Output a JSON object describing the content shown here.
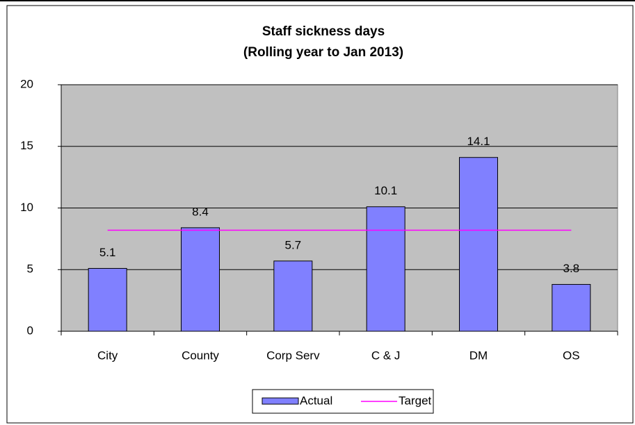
{
  "chart_data": {
    "type": "bar",
    "title": "Staff sickness days",
    "subtitle": "(Rolling year to Jan 2013)",
    "categories": [
      "City",
      "County",
      "Corp Serv",
      "C & J",
      "DM",
      "OS"
    ],
    "series": [
      {
        "name": "Actual",
        "type": "bar",
        "color": "#8080ff",
        "values": [
          5.1,
          8.4,
          5.7,
          10.1,
          14.1,
          3.8
        ]
      },
      {
        "name": "Target",
        "type": "line",
        "color": "#ff00ff",
        "values": [
          8.2,
          8.2,
          8.2,
          8.2,
          8.2,
          8.2
        ]
      }
    ],
    "ylim": [
      0,
      20
    ],
    "yticks": [
      0,
      5,
      10,
      15,
      20
    ],
    "grid": true,
    "legend": "bottom"
  }
}
